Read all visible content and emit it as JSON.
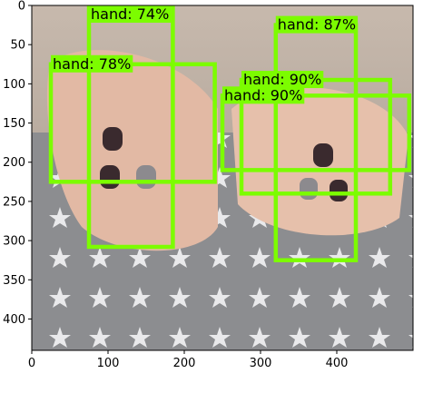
{
  "chart_data": {
    "type": "image-with-detections",
    "title": "",
    "xlabel": "",
    "ylabel": "",
    "xlim": [
      0,
      500
    ],
    "ylim": [
      440,
      0
    ],
    "x_ticks": [
      0,
      100,
      200,
      300,
      400
    ],
    "y_ticks": [
      0,
      50,
      100,
      150,
      200,
      250,
      300,
      350,
      400
    ],
    "box_color": "#7cfc00",
    "detections": [
      {
        "label": "hand: 78%",
        "x0": 25,
        "y0": 75,
        "x1": 240,
        "y1": 225
      },
      {
        "label": "hand: 74%",
        "x0": 75,
        "y0": -5,
        "x1": 185,
        "y1": 308
      },
      {
        "label": "hand: 87%",
        "x0": 320,
        "y0": 25,
        "x1": 425,
        "y1": 325
      },
      {
        "label": "hand: 90%",
        "x0": 275,
        "y0": 95,
        "x1": 470,
        "y1": 240
      },
      {
        "label": "hand: 90%",
        "x0": 250,
        "y0": 115,
        "x1": 495,
        "y1": 210
      }
    ]
  }
}
